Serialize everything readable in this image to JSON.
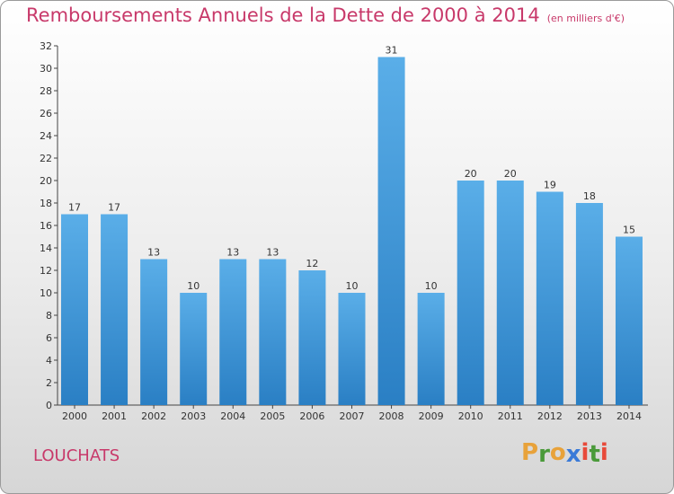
{
  "header": {
    "title": "Remboursements Annuels de la Dette de 2000 à 2014",
    "subtitle": "(en milliers d'€)"
  },
  "footer": {
    "commune": "LOUCHATS",
    "logo_text": "Proxiti"
  },
  "colors": {
    "title": "#c8396a",
    "bar_top": "#5aaee8",
    "bar_bottom": "#2a7fc4",
    "logo_letters": [
      "#e8a23a",
      "#4a9a3a",
      "#e8a23a",
      "#3a7ad8",
      "#e84a3a",
      "#4a9a3a",
      "#e84a3a"
    ]
  },
  "chart_data": {
    "type": "bar",
    "categories": [
      "2000",
      "2001",
      "2002",
      "2003",
      "2004",
      "2005",
      "2006",
      "2007",
      "2008",
      "2009",
      "2010",
      "2011",
      "2012",
      "2013",
      "2014"
    ],
    "values": [
      17,
      17,
      13,
      10,
      13,
      13,
      12,
      10,
      31,
      10,
      20,
      20,
      19,
      18,
      15
    ],
    "ylim": [
      0,
      32
    ],
    "yticks": [
      0,
      2,
      4,
      6,
      8,
      10,
      12,
      14,
      16,
      18,
      20,
      22,
      24,
      26,
      28,
      30,
      32
    ],
    "grid": false,
    "xlabel": "",
    "ylabel": ""
  }
}
